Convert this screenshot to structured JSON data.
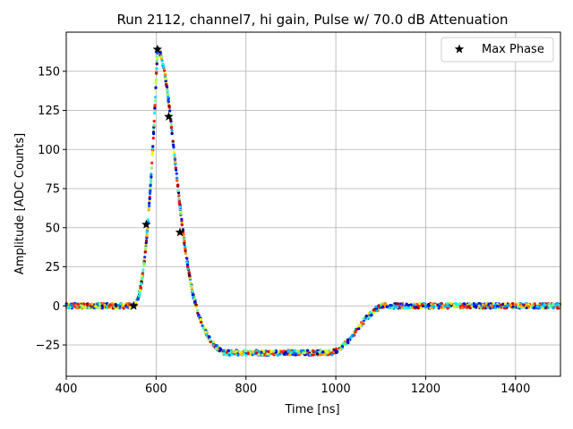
{
  "chart_data": {
    "type": "scatter",
    "title": "Run 2112, channel7, hi gain, Pulse w/ 70.0 dB Attenuation",
    "xlabel": "Time [ns]",
    "ylabel": "Amplitude [ADC Counts]",
    "xlim": [
      400,
      1500
    ],
    "ylim": [
      -45,
      175
    ],
    "xticks": [
      400,
      600,
      800,
      1000,
      1200,
      1400
    ],
    "yticks": [
      -25,
      0,
      25,
      50,
      75,
      100,
      125,
      150
    ],
    "grid": true,
    "legend": {
      "position": "top-right",
      "entries": [
        "Max Phase"
      ]
    },
    "pulse_shape": {
      "baseline": 0,
      "onset_ns": 548,
      "peak_ns": 603,
      "peak_value": 164,
      "undershoot_value": -30,
      "recovery_start_ns": 985,
      "recovery_end_ns": 1110
    },
    "series": [
      {
        "name": "waveform samples (color = phase)",
        "marker": "dot",
        "colormap": "jet"
      },
      {
        "name": "Max Phase",
        "marker": "star",
        "color": "#000000",
        "x": [
          550,
          578,
          603,
          628,
          653
        ],
        "y": [
          0,
          52,
          164,
          121,
          47
        ]
      }
    ]
  }
}
